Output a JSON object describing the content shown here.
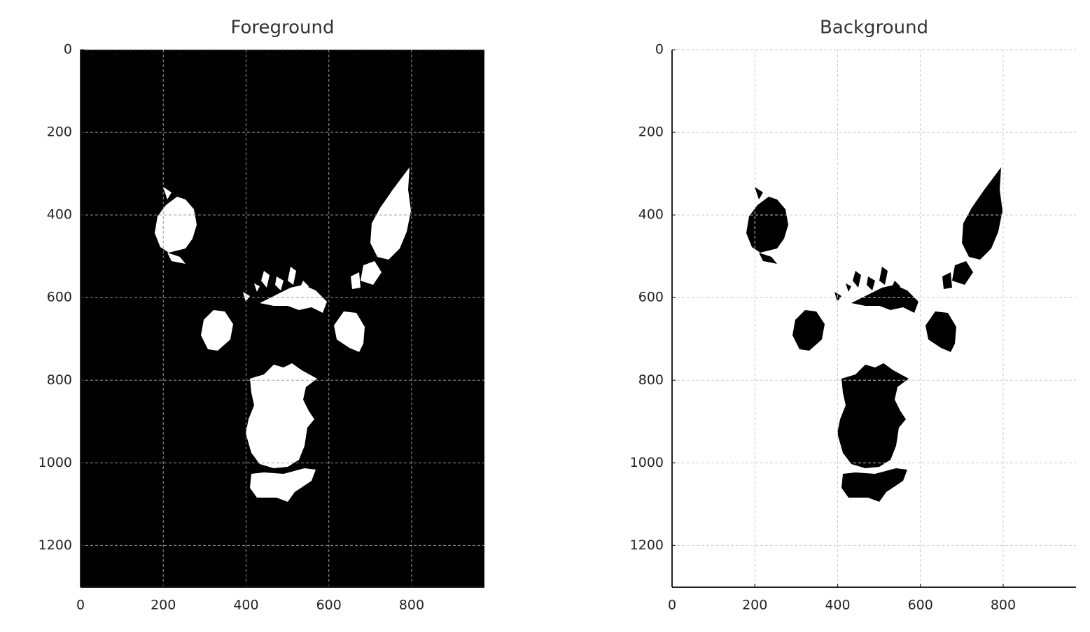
{
  "chart_data": [
    {
      "type": "image",
      "title": "Foreground",
      "xlim": [
        0,
        976
      ],
      "ylim": [
        1301,
        0
      ],
      "xticks": [
        0,
        200,
        400,
        600,
        800
      ],
      "yticks": [
        0,
        200,
        400,
        600,
        800,
        1000,
        1200
      ],
      "grid": true
    },
    {
      "type": "image",
      "title": "Background",
      "xlim": [
        0,
        976
      ],
      "ylim": [
        1301,
        0
      ],
      "xticks": [
        0,
        200,
        400,
        600,
        800
      ],
      "yticks": [
        0,
        200,
        400,
        600,
        800,
        1000,
        1200
      ],
      "grid": true
    }
  ]
}
